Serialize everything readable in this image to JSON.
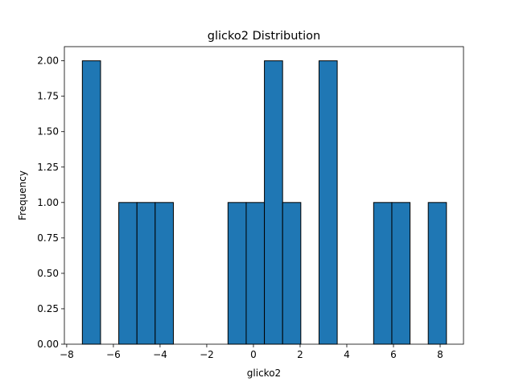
{
  "chart_data": {
    "type": "bar",
    "title": "glicko2 Distribution",
    "xlabel": "glicko2",
    "ylabel": "Frequency",
    "xlim": [
      -8.1,
      9.0
    ],
    "ylim": [
      0,
      2.1
    ],
    "xticks": [
      -8,
      -6,
      -4,
      -2,
      0,
      2,
      4,
      6,
      8
    ],
    "xtick_labels": [
      "−8",
      "−6",
      "−4",
      "−2",
      "0",
      "2",
      "4",
      "6",
      "8"
    ],
    "yticks": [
      0,
      0.25,
      0.5,
      0.75,
      1.0,
      1.25,
      1.5,
      1.75,
      2.0
    ],
    "ytick_labels": [
      "0.00",
      "0.25",
      "0.50",
      "0.75",
      "1.00",
      "1.25",
      "1.50",
      "1.75",
      "2.00"
    ],
    "grid": false,
    "bar_color": "#1f77b4",
    "edge_color": "#000000",
    "bins": [
      {
        "x0": -7.33,
        "x1": -6.55,
        "count": 2
      },
      {
        "x0": -6.55,
        "x1": -5.77,
        "count": 0
      },
      {
        "x0": -5.77,
        "x1": -4.99,
        "count": 1
      },
      {
        "x0": -4.99,
        "x1": -4.21,
        "count": 1
      },
      {
        "x0": -4.21,
        "x1": -3.43,
        "count": 1
      },
      {
        "x0": -3.43,
        "x1": -2.65,
        "count": 0
      },
      {
        "x0": -2.65,
        "x1": -1.87,
        "count": 0
      },
      {
        "x0": -1.87,
        "x1": -1.09,
        "count": 0
      },
      {
        "x0": -1.09,
        "x1": -0.31,
        "count": 1
      },
      {
        "x0": -0.31,
        "x1": 0.47,
        "count": 1
      },
      {
        "x0": 0.47,
        "x1": 1.25,
        "count": 2
      },
      {
        "x0": 1.25,
        "x1": 2.03,
        "count": 1
      },
      {
        "x0": 2.03,
        "x1": 2.81,
        "count": 0
      },
      {
        "x0": 2.81,
        "x1": 3.59,
        "count": 2
      },
      {
        "x0": 3.59,
        "x1": 4.37,
        "count": 0
      },
      {
        "x0": 4.37,
        "x1": 5.15,
        "count": 0
      },
      {
        "x0": 5.15,
        "x1": 5.93,
        "count": 1
      },
      {
        "x0": 5.93,
        "x1": 6.71,
        "count": 1
      },
      {
        "x0": 6.71,
        "x1": 7.49,
        "count": 0
      },
      {
        "x0": 7.49,
        "x1": 8.27,
        "count": 1
      }
    ]
  }
}
